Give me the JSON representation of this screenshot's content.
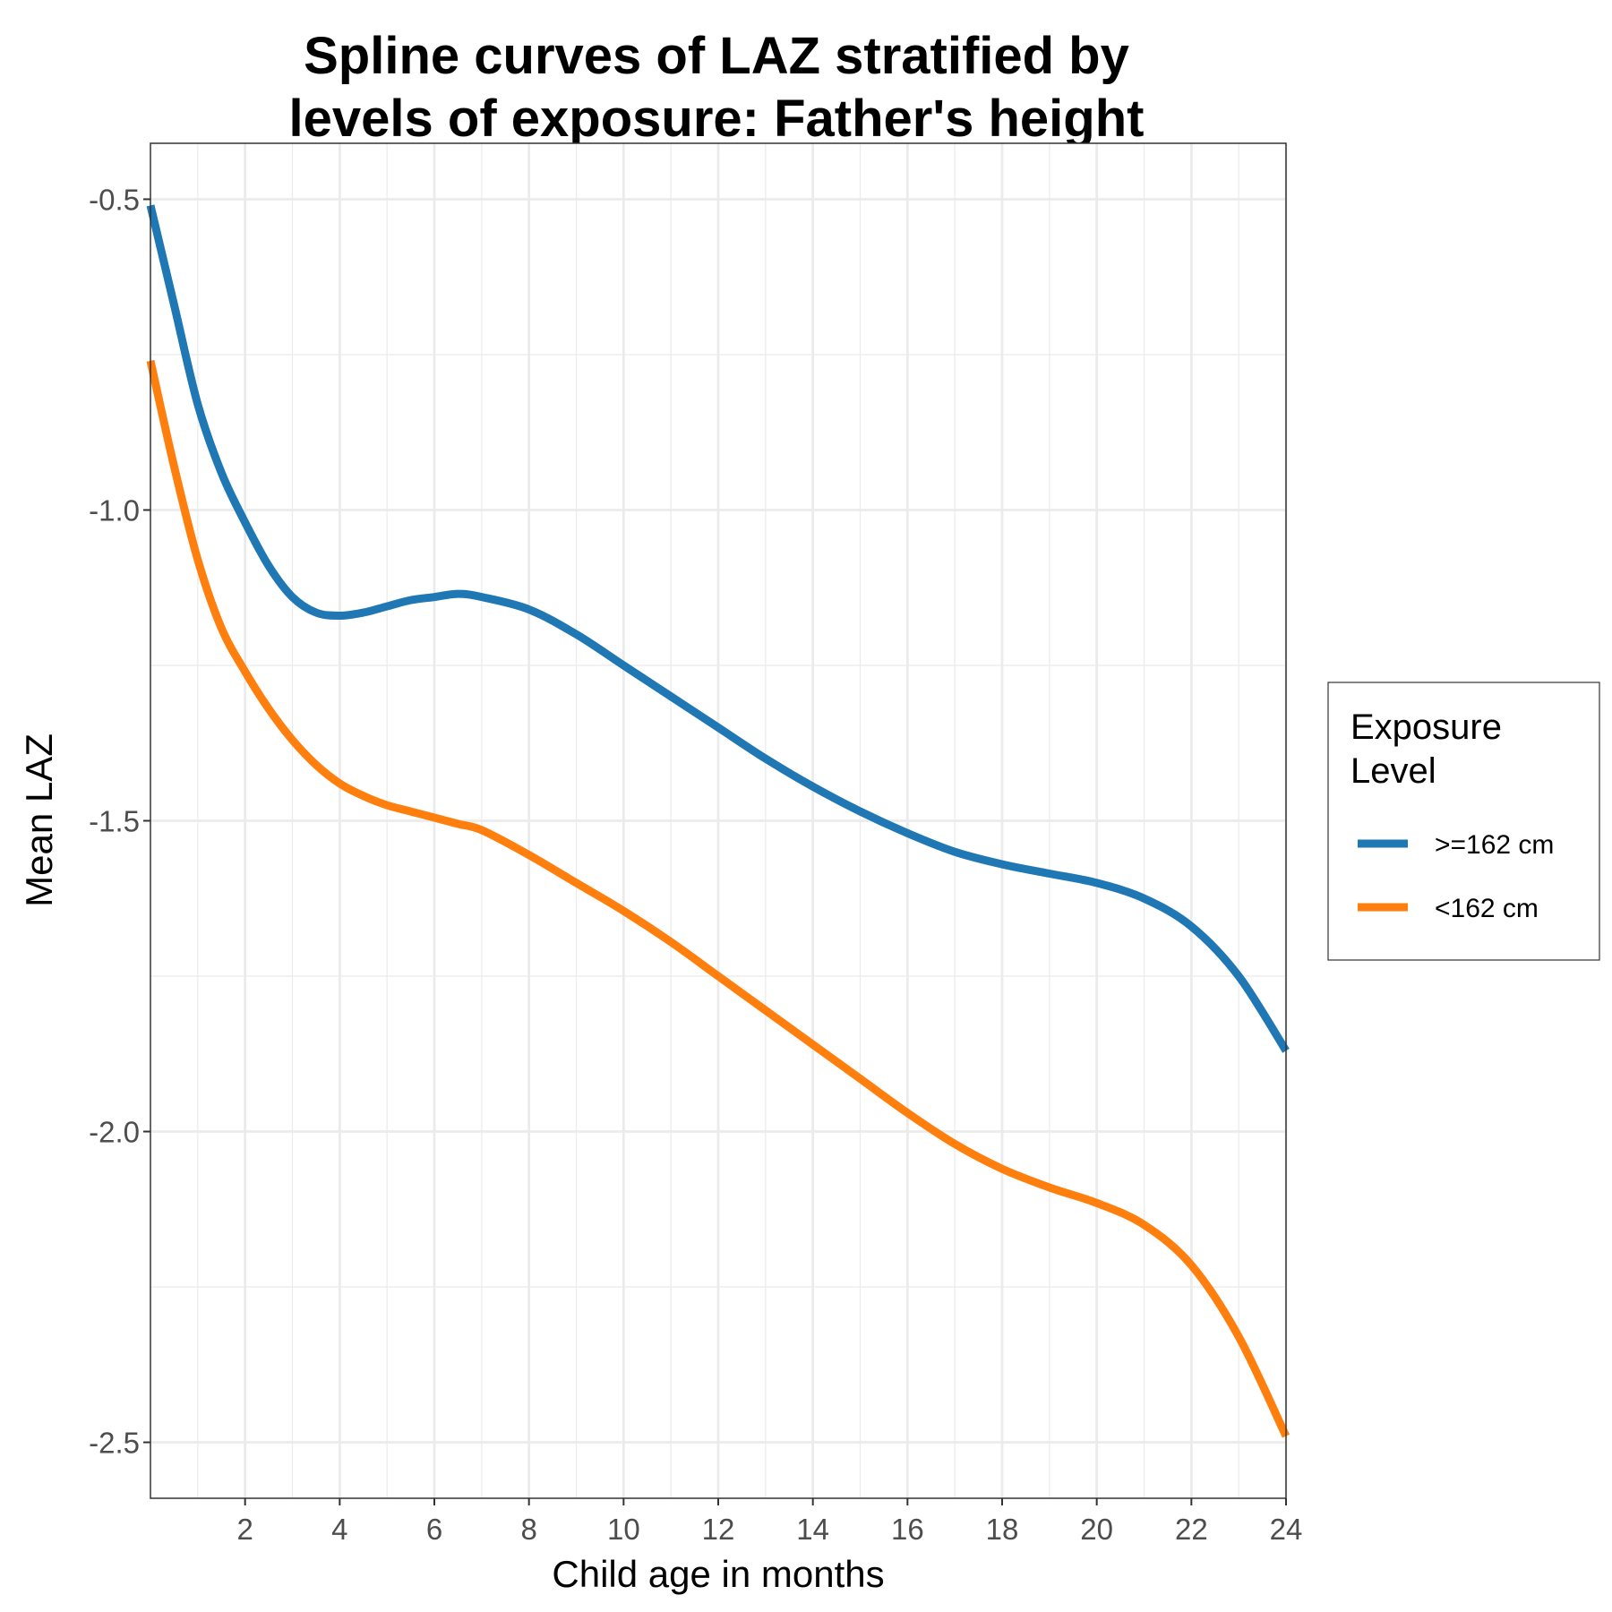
{
  "chart_data": {
    "type": "line",
    "title": [
      "Spline curves of LAZ stratified by",
      "levels of exposure: Father's height"
    ],
    "xlabel": "Child age in months",
    "ylabel": "Mean LAZ",
    "xlim": [
      0,
      24
    ],
    "ylim": [
      -2.59,
      -0.41
    ],
    "x_ticks": [
      2,
      4,
      6,
      8,
      10,
      12,
      14,
      16,
      18,
      20,
      22,
      24
    ],
    "x_tick_labels": [
      "2",
      "4",
      "6",
      "8",
      "10",
      "12",
      "14",
      "16",
      "18",
      "20",
      "22",
      "24"
    ],
    "y_ticks": [
      -0.5,
      -1.0,
      -1.5,
      -2.0,
      -2.5
    ],
    "y_tick_labels": [
      "-0.5",
      "-1.0",
      "-1.5",
      "-2.0",
      "-2.5"
    ],
    "grid": true,
    "legend": {
      "title": [
        "Exposure",
        "Level"
      ],
      "position": "right"
    },
    "series": [
      {
        "name": ">=162 cm",
        "color": "#1f77b4",
        "x": [
          0,
          0.5,
          1,
          1.5,
          2,
          2.5,
          3,
          3.5,
          4,
          4.5,
          5,
          5.5,
          6,
          6.5,
          7,
          8,
          9,
          10,
          11,
          12,
          13,
          14,
          15,
          16,
          17,
          18,
          19,
          20,
          21,
          22,
          23,
          24
        ],
        "y": [
          -0.51,
          -0.67,
          -0.83,
          -0.94,
          -1.02,
          -1.09,
          -1.14,
          -1.165,
          -1.17,
          -1.165,
          -1.155,
          -1.145,
          -1.14,
          -1.135,
          -1.14,
          -1.16,
          -1.2,
          -1.25,
          -1.3,
          -1.35,
          -1.4,
          -1.445,
          -1.485,
          -1.52,
          -1.55,
          -1.57,
          -1.585,
          -1.6,
          -1.625,
          -1.67,
          -1.75,
          -1.87
        ]
      },
      {
        "name": "<162 cm",
        "color": "#ff7f0e",
        "x": [
          0,
          0.5,
          1,
          1.5,
          2,
          2.5,
          3,
          3.5,
          4,
          4.5,
          5,
          5.5,
          6,
          6.5,
          7,
          8,
          9,
          10,
          11,
          12,
          13,
          14,
          15,
          16,
          17,
          18,
          19,
          20,
          21,
          22,
          23,
          24
        ],
        "y": [
          -0.76,
          -0.93,
          -1.08,
          -1.19,
          -1.26,
          -1.32,
          -1.37,
          -1.41,
          -1.44,
          -1.46,
          -1.475,
          -1.485,
          -1.495,
          -1.505,
          -1.515,
          -1.555,
          -1.6,
          -1.645,
          -1.695,
          -1.75,
          -1.805,
          -1.86,
          -1.915,
          -1.97,
          -2.02,
          -2.06,
          -2.09,
          -2.115,
          -2.15,
          -2.215,
          -2.33,
          -2.49
        ]
      }
    ]
  }
}
